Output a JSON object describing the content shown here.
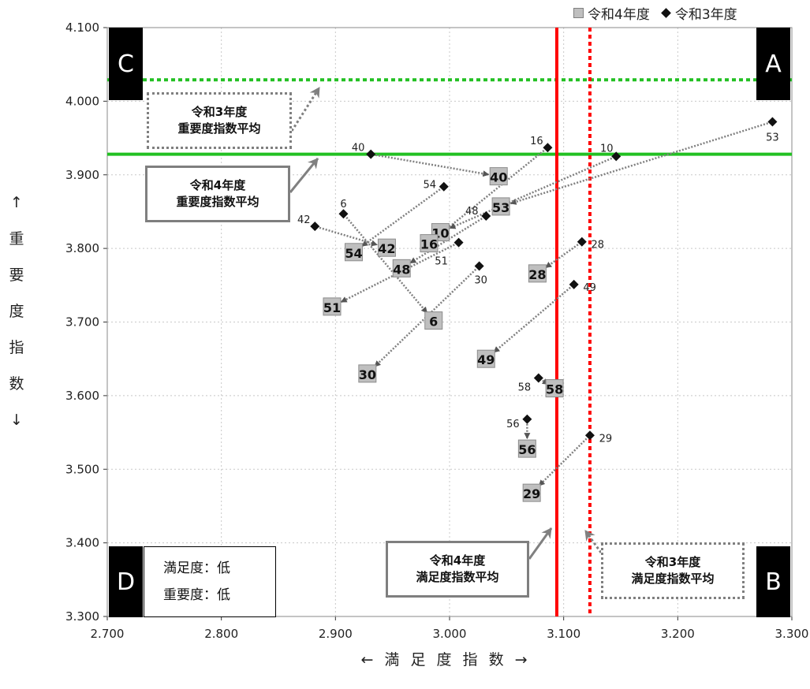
{
  "chart_data": {
    "type": "scatter",
    "title": "",
    "xlabel": "← 満 足 度 指 数 →",
    "ylabel": [
      "↑",
      "重",
      "要",
      "度",
      "指",
      "数",
      "↓"
    ],
    "xlim": [
      2.7,
      3.3
    ],
    "ylim": [
      3.3,
      4.1
    ],
    "x_ticks": [
      "2.700",
      "2.800",
      "2.900",
      "3.000",
      "3.100",
      "3.200",
      "3.300"
    ],
    "y_ticks": [
      "3.300",
      "3.400",
      "3.500",
      "3.600",
      "3.700",
      "3.800",
      "3.900",
      "4.000",
      "4.100"
    ],
    "grid": true,
    "legend_position": "top-right",
    "series": [
      {
        "name": "令和4年度",
        "marker": "square",
        "color": "#bfbfbf",
        "points": [
          {
            "id": "40",
            "x": 3.043,
            "y": 3.898
          },
          {
            "id": "53",
            "x": 3.045,
            "y": 3.857
          },
          {
            "id": "10",
            "x": 2.992,
            "y": 3.822
          },
          {
            "id": "16",
            "x": 2.982,
            "y": 3.807
          },
          {
            "id": "42",
            "x": 2.945,
            "y": 3.801
          },
          {
            "id": "54",
            "x": 2.916,
            "y": 3.795
          },
          {
            "id": "48",
            "x": 2.958,
            "y": 3.773
          },
          {
            "id": "28",
            "x": 3.077,
            "y": 3.766
          },
          {
            "id": "51",
            "x": 2.897,
            "y": 3.721
          },
          {
            "id": "6",
            "x": 2.986,
            "y": 3.702
          },
          {
            "id": "49",
            "x": 3.032,
            "y": 3.65
          },
          {
            "id": "30",
            "x": 2.928,
            "y": 3.63
          },
          {
            "id": "58",
            "x": 3.092,
            "y": 3.61
          },
          {
            "id": "56",
            "x": 3.068,
            "y": 3.528
          },
          {
            "id": "29",
            "x": 3.072,
            "y": 3.468
          }
        ]
      },
      {
        "name": "令和3年度",
        "marker": "diamond",
        "color": "#111111",
        "points": [
          {
            "id": "53",
            "x": 3.283,
            "y": 3.972
          },
          {
            "id": "16",
            "x": 3.086,
            "y": 3.937
          },
          {
            "id": "40",
            "x": 2.931,
            "y": 3.928
          },
          {
            "id": "10",
            "x": 3.146,
            "y": 3.925
          },
          {
            "id": "54",
            "x": 2.995,
            "y": 3.884
          },
          {
            "id": "6",
            "x": 2.907,
            "y": 3.847
          },
          {
            "id": "48",
            "x": 3.032,
            "y": 3.844
          },
          {
            "id": "42",
            "x": 2.882,
            "y": 3.83
          },
          {
            "id": "28",
            "x": 3.116,
            "y": 3.809
          },
          {
            "id": "51",
            "x": 3.008,
            "y": 3.808
          },
          {
            "id": "30",
            "x": 3.026,
            "y": 3.776
          },
          {
            "id": "49",
            "x": 3.109,
            "y": 3.751
          },
          {
            "id": "58",
            "x": 3.078,
            "y": 3.624
          },
          {
            "id": "56",
            "x": 3.068,
            "y": 3.568
          },
          {
            "id": "29",
            "x": 3.123,
            "y": 3.546
          }
        ]
      }
    ],
    "reference_lines": [
      {
        "axis": "y",
        "value": 4.029,
        "style": "dotted",
        "color": "#22c022",
        "label": "令和3年度 重要度指数平均"
      },
      {
        "axis": "y",
        "value": 3.928,
        "style": "solid",
        "color": "#22c022",
        "label": "令和4年度 重要度指数平均"
      },
      {
        "axis": "x",
        "value": 3.094,
        "style": "solid",
        "color": "#ff0000",
        "label": "令和4年度 満足度指数平均"
      },
      {
        "axis": "x",
        "value": 3.123,
        "style": "dotted",
        "color": "#ff0000",
        "label": "令和3年度 満足度指数平均"
      }
    ],
    "quadrants": [
      "A",
      "B",
      "C",
      "D"
    ],
    "callouts": {
      "r3_importance": [
        "令和3年度",
        "重要度指数平均"
      ],
      "r4_importance": [
        "令和4年度",
        "重要度指数平均"
      ],
      "r4_satisfaction": [
        "令和4年度",
        "満足度指数平均"
      ],
      "r3_satisfaction": [
        "令和3年度",
        "満足度指数平均"
      ]
    },
    "d_note": [
      "満足度：低",
      "重要度：低"
    ]
  }
}
